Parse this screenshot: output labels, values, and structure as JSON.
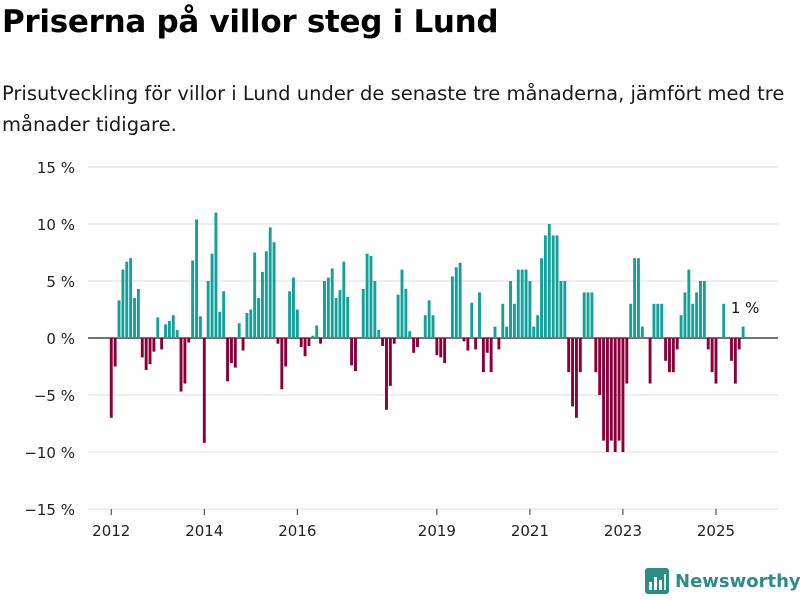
{
  "title": "Priserna på villor steg i Lund",
  "subtitle": "Prisutveckling för villor i Lund under de senaste tre månaderna, jämfört med tre månader tidigare.",
  "brand": {
    "name": "Newsworthy",
    "icon": "newsworthy-logo-icon",
    "color": "#2b8d84"
  },
  "colors": {
    "positive": "#14a19b",
    "negative": "#8c0039",
    "grid": "#dcdcdc",
    "zero_line": "#222222"
  },
  "chart_data": {
    "type": "bar",
    "title": "",
    "xlabel": "",
    "ylabel": "",
    "ylim": [
      -15,
      15
    ],
    "yticks": [
      15,
      10,
      5,
      0,
      -5,
      -10,
      -15
    ],
    "ytick_labels": [
      "15 %",
      "10 %",
      "5 %",
      "0 %",
      "−5 %",
      "−10 %",
      "−15 %"
    ],
    "xlim": [
      "2011-07",
      "2026-05"
    ],
    "xticks": [
      "2012-01",
      "2014-01",
      "2016-01",
      "2019-01",
      "2021-01",
      "2023-01",
      "2025-01"
    ],
    "xtick_labels": [
      "2012",
      "2014",
      "2016",
      "2019",
      "2021",
      "2023",
      "2025"
    ],
    "grid": true,
    "annotation": {
      "month": "2025-08",
      "text": "1 %"
    },
    "months": [
      "2012-01",
      "2012-02",
      "2012-03",
      "2012-04",
      "2012-05",
      "2012-06",
      "2012-07",
      "2012-08",
      "2012-09",
      "2012-10",
      "2012-11",
      "2012-12",
      "2013-01",
      "2013-02",
      "2013-03",
      "2013-04",
      "2013-05",
      "2013-06",
      "2013-07",
      "2013-08",
      "2013-09",
      "2013-10",
      "2013-11",
      "2013-12",
      "2014-01",
      "2014-02",
      "2014-03",
      "2014-04",
      "2014-05",
      "2014-06",
      "2014-07",
      "2014-08",
      "2014-09",
      "2014-10",
      "2014-11",
      "2014-12",
      "2015-01",
      "2015-02",
      "2015-03",
      "2015-04",
      "2015-05",
      "2015-06",
      "2015-07",
      "2015-08",
      "2015-09",
      "2015-10",
      "2015-11",
      "2015-12",
      "2016-01",
      "2016-02",
      "2016-03",
      "2016-04",
      "2016-05",
      "2016-06",
      "2016-07",
      "2016-08",
      "2016-09",
      "2016-10",
      "2016-11",
      "2016-12",
      "2017-01",
      "2017-02",
      "2017-03",
      "2017-04",
      "2017-05",
      "2017-06",
      "2017-07",
      "2017-08",
      "2017-09",
      "2017-10",
      "2017-11",
      "2017-12",
      "2018-01",
      "2018-02",
      "2018-03",
      "2018-04",
      "2018-05",
      "2018-06",
      "2018-07",
      "2018-08",
      "2018-09",
      "2018-10",
      "2018-11",
      "2018-12",
      "2019-01",
      "2019-02",
      "2019-03",
      "2019-04",
      "2019-05",
      "2019-06",
      "2019-07",
      "2019-08",
      "2019-09",
      "2019-10",
      "2019-11",
      "2019-12",
      "2020-01",
      "2020-02",
      "2020-03",
      "2020-04",
      "2020-05",
      "2020-06",
      "2020-07",
      "2020-08",
      "2020-09",
      "2020-10",
      "2020-11",
      "2020-12",
      "2021-01",
      "2021-02",
      "2021-03",
      "2021-04",
      "2021-05",
      "2021-06",
      "2021-07",
      "2021-08",
      "2021-09",
      "2021-10",
      "2021-11",
      "2021-12",
      "2022-01",
      "2022-02",
      "2022-03",
      "2022-04",
      "2022-05",
      "2022-06",
      "2022-07",
      "2022-08",
      "2022-09",
      "2022-10",
      "2022-11",
      "2022-12",
      "2023-01",
      "2023-02",
      "2023-03",
      "2023-04",
      "2023-05",
      "2023-06",
      "2023-07",
      "2023-08",
      "2023-09",
      "2023-10",
      "2023-11",
      "2023-12",
      "2024-01",
      "2024-02",
      "2024-03",
      "2024-04",
      "2024-05",
      "2024-06",
      "2024-07",
      "2024-08",
      "2024-09",
      "2024-10",
      "2024-11",
      "2024-12",
      "2025-01",
      "2025-02",
      "2025-03",
      "2025-04",
      "2025-05",
      "2025-06",
      "2025-07",
      "2025-08"
    ],
    "values": [
      -7,
      -2.5,
      3.3,
      6,
      6.7,
      7,
      3.5,
      4.3,
      -1.7,
      -2.8,
      -2.3,
      -1.2,
      1.8,
      -1,
      1.2,
      1.5,
      2,
      0.7,
      -4.7,
      -4,
      -0.4,
      6.8,
      10.4,
      1.9,
      -9.2,
      5,
      7.4,
      11,
      2.3,
      4.1,
      -3.8,
      -2.2,
      -2.6,
      1.3,
      -1.1,
      2.2,
      2.5,
      7.5,
      3.5,
      5.8,
      7.6,
      9.7,
      8.4,
      -0.5,
      -4.5,
      -2.5,
      4.1,
      5.3,
      2.5,
      -0.8,
      -1.6,
      -0.7,
      0.2,
      1.1,
      -0.5,
      5,
      5.3,
      6.1,
      3.5,
      4.2,
      6.7,
      3.6,
      -2.4,
      -2.9,
      0,
      4.3,
      7.4,
      7.2,
      5,
      0.7,
      -0.7,
      -6.3,
      -4.2,
      -0.5,
      3.8,
      6,
      4.3,
      0.6,
      -1.3,
      -0.8,
      0,
      2,
      3.3,
      2,
      -1.5,
      -1.7,
      -2.2,
      0,
      5.4,
      6.2,
      6.6,
      -0.3,
      -1.1,
      3.1,
      -1,
      4,
      -3,
      -1.3,
      -3,
      1,
      -1,
      3,
      1,
      5,
      3,
      6,
      6,
      6,
      5,
      1,
      2,
      7,
      9,
      10,
      9,
      9,
      5,
      5,
      -3,
      -6,
      -7,
      -3,
      4,
      4,
      4,
      -3,
      -5,
      -9,
      -10,
      -9,
      -10,
      -9,
      -10,
      -4,
      3,
      7,
      7,
      1,
      0,
      -4,
      3,
      3,
      3,
      -2,
      -3,
      -3,
      -1,
      2,
      4,
      6,
      3,
      4,
      5,
      5,
      -1,
      -3,
      -4,
      0,
      3,
      0,
      -2,
      -4,
      -1,
      1
    ]
  }
}
